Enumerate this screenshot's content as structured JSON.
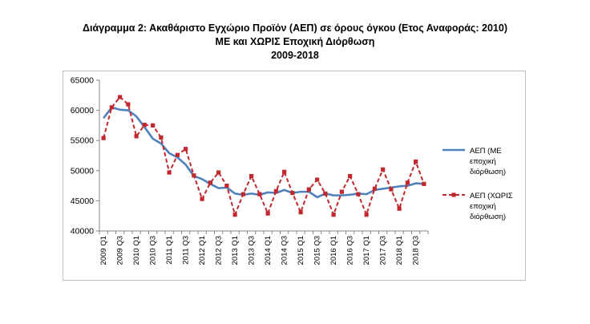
{
  "title": {
    "line1": "Διάγραμμα 2: Ακαθάριστο Εγχώριο Προϊόν (ΑΕΠ) σε όρους όγκου (Ετος Αναφοράς: 2010)",
    "line2": "ΜΕ και ΧΩΡΙΣ Εποχική Διόρθωση",
    "line3": "2009-2018"
  },
  "legend": {
    "s1_lines": [
      "ΑΕΠ (ΜΕ",
      "εποχική",
      "διόρθωση)"
    ],
    "s2_lines": [
      "ΑΕΠ (ΧΩΡΙΣ",
      "εποχική",
      "διόρθωση)"
    ]
  },
  "chart_data": {
    "type": "line",
    "title": "Διάγραμμα 2: Ακαθάριστο Εγχώριο Προϊόν (ΑΕΠ) σε όρους όγκου (Ετος Αναφοράς: 2010) ΜΕ και ΧΩΡΙΣ Εποχική Διόρθωση 2009-2018",
    "categories": [
      "2009 Q1",
      "2009 Q2",
      "2009 Q3",
      "2009 Q4",
      "2010 Q1",
      "2010 Q2",
      "2010 Q3",
      "2010 Q4",
      "2011 Q1",
      "2011 Q2",
      "2011 Q3",
      "2011 Q4",
      "2012 Q1",
      "2012 Q2",
      "2012 Q3",
      "2012 Q4",
      "2013 Q1",
      "2013 Q2",
      "2013 Q3",
      "2013 Q4",
      "2014 Q1",
      "2014 Q2",
      "2014 Q3",
      "2014 Q4",
      "2015 Q1",
      "2015 Q2",
      "2015 Q3",
      "2015 Q4",
      "2016 Q1",
      "2016 Q2",
      "2016 Q3",
      "2016 Q4",
      "2017 Q1",
      "2017 Q2",
      "2017 Q3",
      "2017 Q4",
      "2018 Q1",
      "2018 Q2",
      "2018 Q3",
      "2018 Q4"
    ],
    "tick_labels": [
      "2009 Q1",
      "2009 Q3",
      "2010 Q1",
      "2010 Q3",
      "2011 Q1",
      "2011 Q3",
      "2012 Q1",
      "2012 Q3",
      "2013 Q1",
      "2013 Q3",
      "2014 Q1",
      "2014 Q3",
      "2015 Q1",
      "2015 Q3",
      "2016 Q1",
      "2016 Q3",
      "2017 Q1",
      "2017 Q3",
      "2018 Q1",
      "2018 Q3"
    ],
    "ylim": [
      40000,
      65000
    ],
    "yticks": [
      40000,
      45000,
      50000,
      55000,
      60000,
      65000
    ],
    "grid": "none",
    "legend_position": "right",
    "series": [
      {
        "name": "ΑΕΠ (ΜΕ εποχική διόρθωση)",
        "color": "#4f81bd",
        "style": "solid",
        "values": [
          58700,
          60500,
          60100,
          60000,
          59000,
          57200,
          55300,
          54500,
          52900,
          52200,
          51000,
          49100,
          48600,
          47800,
          47100,
          47200,
          46200,
          46000,
          46200,
          46000,
          46400,
          46300,
          46800,
          46300,
          46500,
          46500,
          45600,
          46200,
          45900,
          45900,
          46000,
          46200,
          46100,
          46800,
          47000,
          47200,
          47400,
          47500,
          47900,
          47800
        ]
      },
      {
        "name": "ΑΕΠ (ΧΩΡΙΣ εποχική διόρθωση)",
        "color": "#c0282d",
        "style": "dashed",
        "marker": "square",
        "values": [
          55400,
          60500,
          62200,
          61000,
          55700,
          57600,
          57500,
          55500,
          49700,
          52600,
          53600,
          49200,
          45300,
          48000,
          49700,
          47500,
          42700,
          46100,
          49100,
          46100,
          42900,
          46600,
          49800,
          46300,
          43100,
          46900,
          48500,
          46200,
          42700,
          46500,
          49100,
          46100,
          42700,
          47000,
          50200,
          46900,
          43700,
          48000,
          51500,
          47800
        ]
      }
    ]
  }
}
